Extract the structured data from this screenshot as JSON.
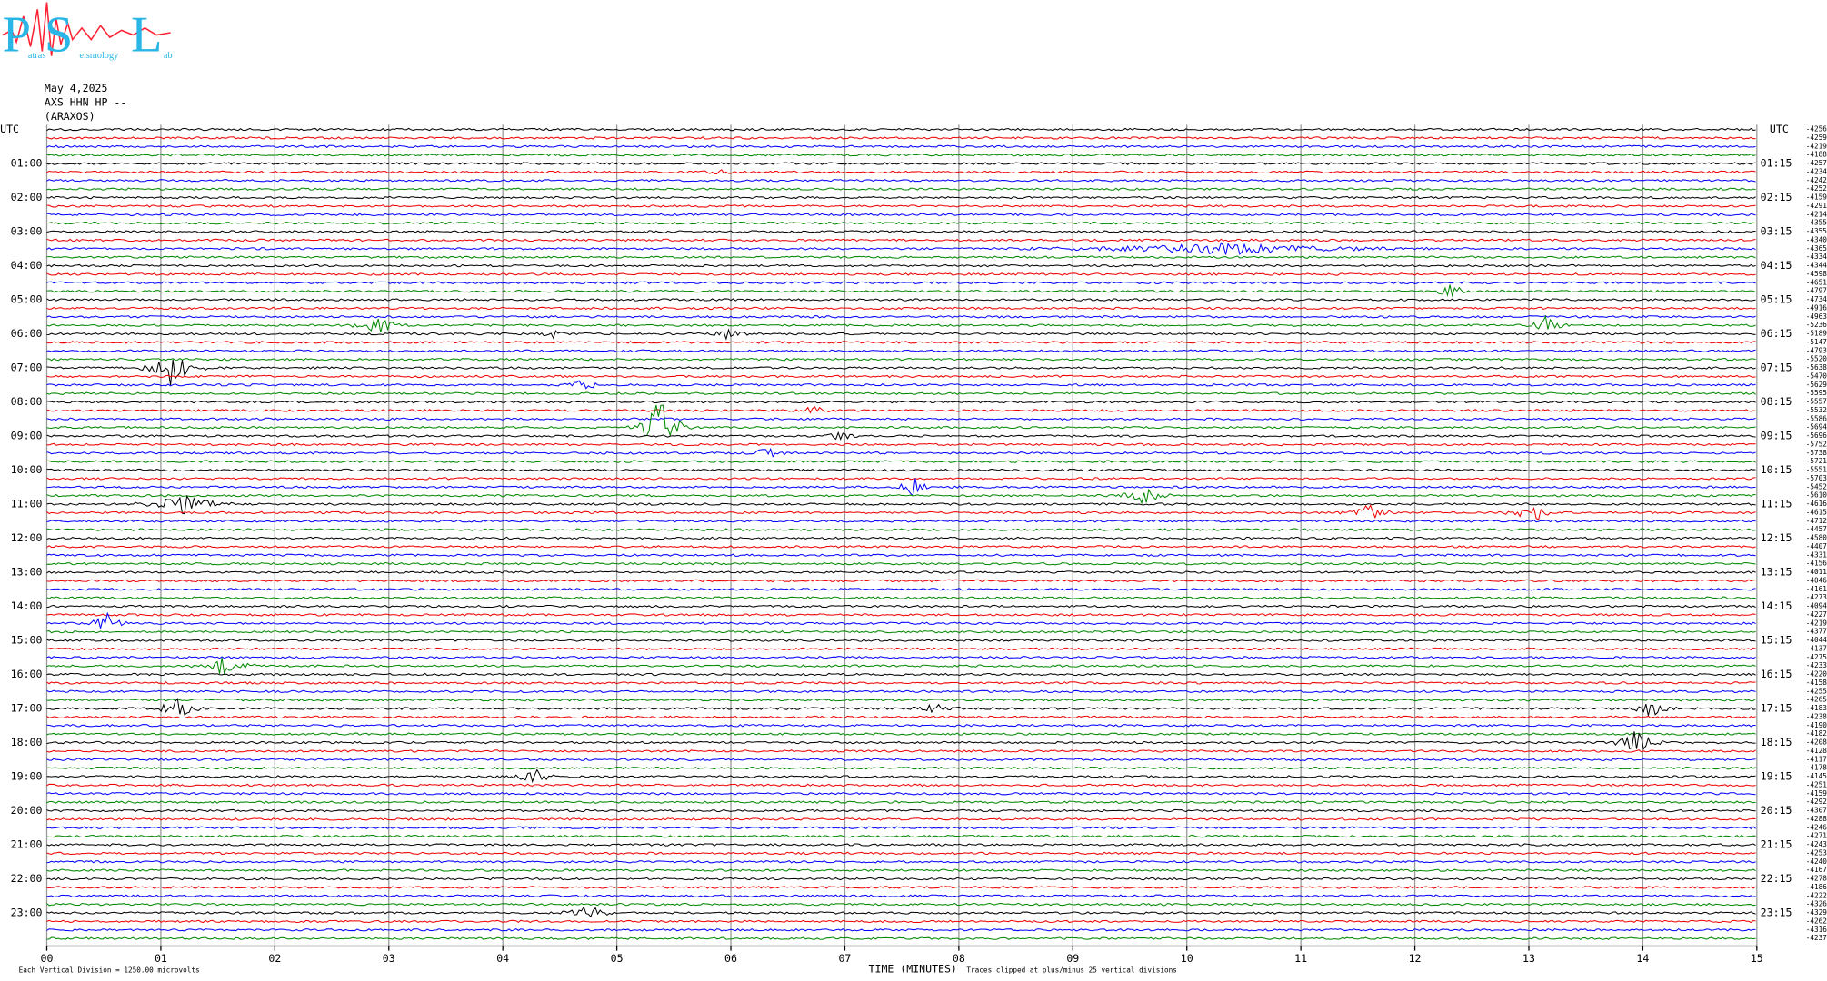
{
  "logo": {
    "p": "P",
    "s": "S",
    "l": "L",
    "words": [
      "atras",
      "eismology",
      "ab"
    ]
  },
  "header": {
    "date": "May 4,2025",
    "channel": "AXS HHN HP --",
    "station": "(ARAXOS)",
    "utc_left": "UTC",
    "utc_right": "UTC"
  },
  "left_labels": [
    "01:00",
    "02:00",
    "03:00",
    "04:00",
    "05:00",
    "06:00",
    "07:00",
    "08:00",
    "09:00",
    "10:00",
    "11:00",
    "12:00",
    "13:00",
    "14:00",
    "15:00",
    "16:00",
    "17:00",
    "18:00",
    "19:00",
    "20:00",
    "21:00",
    "22:00",
    "23:00"
  ],
  "right_labels": [
    "01:15",
    "02:15",
    "03:15",
    "04:15",
    "05:15",
    "06:15",
    "07:15",
    "08:15",
    "09:15",
    "10:15",
    "11:15",
    "12:15",
    "13:15",
    "14:15",
    "15:15",
    "16:15",
    "17:15",
    "18:15",
    "19:15",
    "20:15",
    "21:15",
    "22:15",
    "23:15"
  ],
  "trace_offsets": [
    -4256,
    -4259,
    -4219,
    -4188,
    -4257,
    -4234,
    -4242,
    -4252,
    -4159,
    -4291,
    -4214,
    -4355,
    -4355,
    -4340,
    -4365,
    -4334,
    -4344,
    -4598,
    -4651,
    -4797,
    -4734,
    -4916,
    -4963,
    -5236,
    -5189,
    -5147,
    -4793,
    -5520,
    -5638,
    -5470,
    -5629,
    -5595,
    -5557,
    -5532,
    -5586,
    -5694,
    -5696,
    -5752,
    -5738,
    -5721,
    -5551,
    -5703,
    -5452,
    -5610,
    -4616,
    -4615,
    -4712,
    -4457,
    -4580,
    -4407,
    -4331,
    -4156,
    -4011,
    -4046,
    -4161,
    -4273,
    -4094,
    -4227,
    -4219,
    -4377,
    -4044,
    -4137,
    -4275,
    -4233,
    -4220,
    -4158,
    -4255,
    -4265,
    -4183,
    -4238,
    -4190,
    -4182,
    -4208,
    -4128,
    -4117,
    -4178,
    -4145,
    -4251,
    -4159,
    -4292,
    -4307,
    -4288,
    -4246,
    -4271,
    -4243,
    -4253,
    -4240,
    -4167,
    -4278,
    -4186,
    -4222,
    -4326,
    -4329,
    -4262,
    -4316,
    -4237
  ],
  "x_ticks": [
    "00",
    "01",
    "02",
    "03",
    "04",
    "05",
    "06",
    "07",
    "08",
    "09",
    "10",
    "11",
    "12",
    "13",
    "14",
    "15"
  ],
  "footer": {
    "division": "Each Vertical Division = 1250.00 microvolts",
    "axis_title": "TIME (MINUTES)",
    "clip": "Traces clipped at plus/minus 25 vertical divisions"
  }
}
